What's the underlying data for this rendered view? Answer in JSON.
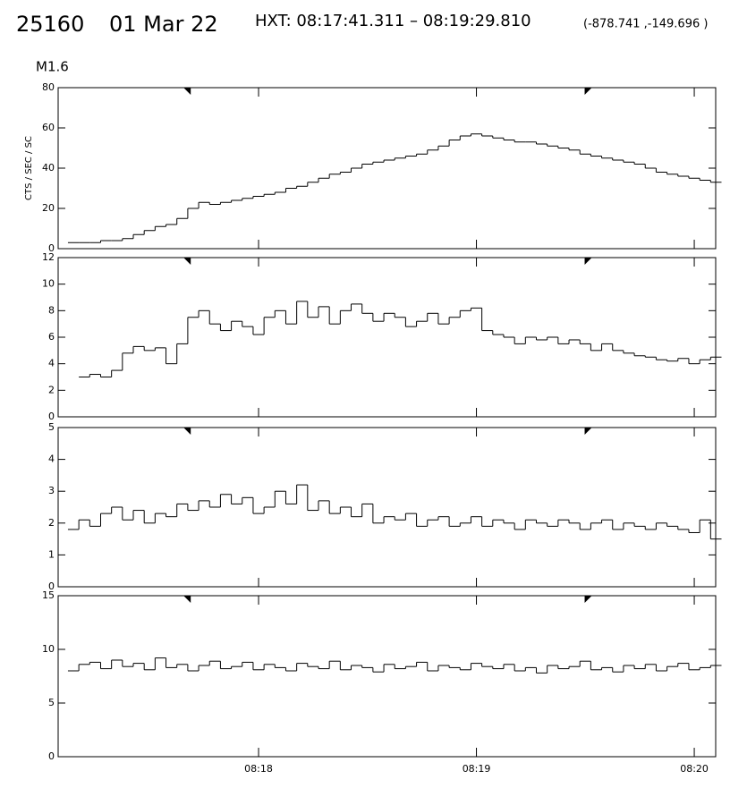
{
  "header": {
    "flare": "25160",
    "date": "01 Mar 22",
    "hxt": "HXT: 08:17:41.311 – 08:19:29.810",
    "coords": "(-878.741 ,-149.696 )",
    "class": "M1.6"
  },
  "hxt_interval": [
    41.311,
    149.81
  ],
  "chart_data": [
    {
      "type": "line",
      "step": true,
      "ylabel": "CTS / SEC / SC",
      "x": [
        9,
        12,
        15,
        18,
        21,
        24,
        27,
        30,
        33,
        36,
        39,
        42,
        45,
        48,
        51,
        54,
        57,
        60,
        63,
        66,
        69,
        72,
        75,
        78,
        81,
        84,
        87,
        90,
        93,
        96,
        99,
        102,
        105,
        108,
        111,
        114,
        117,
        120,
        123,
        126,
        129,
        132,
        135,
        138,
        141,
        144,
        147,
        150,
        153,
        156,
        159,
        162,
        165,
        168,
        171,
        174,
        177,
        180,
        183,
        186
      ],
      "values": [
        3,
        3,
        3,
        4,
        4,
        5,
        7,
        9,
        11,
        12,
        15,
        20,
        23,
        22,
        23,
        24,
        25,
        26,
        27,
        28,
        30,
        31,
        33,
        35,
        37,
        38,
        40,
        42,
        43,
        44,
        45,
        46,
        47,
        49,
        51,
        54,
        56,
        57,
        56,
        55,
        54,
        53,
        53,
        52,
        51,
        50,
        49,
        47,
        46,
        45,
        44,
        43,
        42,
        40,
        38,
        37,
        36,
        35,
        34,
        33
      ],
      "color": "#000000",
      "xlim": [
        4.8,
        185.9
      ],
      "xticks": [
        {
          "value": 60,
          "label": "08:18"
        },
        {
          "value": 120,
          "label": "08:19"
        },
        {
          "value": 180,
          "label": "08:20"
        }
      ],
      "ylim": [
        0,
        80
      ],
      "yticks": [
        0,
        20,
        40,
        60,
        80
      ]
    },
    {
      "type": "line",
      "step": true,
      "x": [
        9,
        12,
        15,
        18,
        21,
        24,
        27,
        30,
        33,
        36,
        39,
        42,
        45,
        48,
        51,
        54,
        57,
        60,
        63,
        66,
        69,
        72,
        75,
        78,
        81,
        84,
        87,
        90,
        93,
        96,
        99,
        102,
        105,
        108,
        111,
        114,
        117,
        120,
        123,
        126,
        129,
        132,
        135,
        138,
        141,
        144,
        147,
        150,
        153,
        156,
        159,
        162,
        165,
        168,
        171,
        174,
        177,
        180,
        183,
        186
      ],
      "values": [
        null,
        3,
        3.2,
        3,
        3.5,
        4.8,
        5.3,
        5,
        5.2,
        4,
        5.5,
        7.5,
        8,
        7,
        6.5,
        7.2,
        6.8,
        6.2,
        7.5,
        8,
        7,
        8.7,
        7.5,
        8.3,
        7,
        8,
        8.5,
        7.8,
        7.2,
        7.8,
        7.5,
        6.8,
        7.2,
        7.8,
        7,
        7.5,
        8,
        8.2,
        6.5,
        6.2,
        6,
        5.5,
        6,
        5.8,
        6,
        5.5,
        5.8,
        5.5,
        5,
        5.5,
        5,
        4.8,
        4.6,
        4.5,
        4.3,
        4.2,
        4.4,
        4,
        4.3,
        4.5
      ],
      "color": "#000000",
      "xlim": [
        4.8,
        185.9
      ],
      "xticks": [
        {
          "value": 60,
          "label": "08:18"
        },
        {
          "value": 120,
          "label": "08:19"
        },
        {
          "value": 180,
          "label": "08:20"
        }
      ],
      "ylim": [
        0,
        12
      ],
      "yticks": [
        0,
        2,
        4,
        6,
        8,
        10,
        12
      ]
    },
    {
      "type": "line",
      "step": true,
      "x": [
        9,
        12,
        15,
        18,
        21,
        24,
        27,
        30,
        33,
        36,
        39,
        42,
        45,
        48,
        51,
        54,
        57,
        60,
        63,
        66,
        69,
        72,
        75,
        78,
        81,
        84,
        87,
        90,
        93,
        96,
        99,
        102,
        105,
        108,
        111,
        114,
        117,
        120,
        123,
        126,
        129,
        132,
        135,
        138,
        141,
        144,
        147,
        150,
        153,
        156,
        159,
        162,
        165,
        168,
        171,
        174,
        177,
        180,
        183,
        186
      ],
      "values": [
        1.8,
        2.1,
        1.9,
        2.3,
        2.5,
        2.1,
        2.4,
        2.0,
        2.3,
        2.2,
        2.6,
        2.4,
        2.7,
        2.5,
        2.9,
        2.6,
        2.8,
        2.3,
        2.5,
        3.0,
        2.6,
        3.2,
        2.4,
        2.7,
        2.3,
        2.5,
        2.2,
        2.6,
        2.0,
        2.2,
        2.1,
        2.3,
        1.9,
        2.1,
        2.2,
        1.9,
        2.0,
        2.2,
        1.9,
        2.1,
        2.0,
        1.8,
        2.1,
        2.0,
        1.9,
        2.1,
        2.0,
        1.8,
        2.0,
        2.1,
        1.8,
        2.0,
        1.9,
        1.8,
        2.0,
        1.9,
        1.8,
        1.7,
        2.1,
        1.5
      ],
      "color": "#000000",
      "xlim": [
        4.8,
        185.9
      ],
      "xticks": [
        {
          "value": 60,
          "label": "08:18"
        },
        {
          "value": 120,
          "label": "08:19"
        },
        {
          "value": 180,
          "label": "08:20"
        }
      ],
      "ylim": [
        0,
        5
      ],
      "yticks": [
        0,
        1,
        2,
        3,
        4,
        5
      ]
    },
    {
      "type": "line",
      "step": true,
      "x": [
        9,
        12,
        15,
        18,
        21,
        24,
        27,
        30,
        33,
        36,
        39,
        42,
        45,
        48,
        51,
        54,
        57,
        60,
        63,
        66,
        69,
        72,
        75,
        78,
        81,
        84,
        87,
        90,
        93,
        96,
        99,
        102,
        105,
        108,
        111,
        114,
        117,
        120,
        123,
        126,
        129,
        132,
        135,
        138,
        141,
        144,
        147,
        150,
        153,
        156,
        159,
        162,
        165,
        168,
        171,
        174,
        177,
        180,
        183,
        186
      ],
      "values": [
        8.0,
        8.6,
        8.8,
        8.2,
        9.0,
        8.4,
        8.7,
        8.1,
        9.2,
        8.3,
        8.6,
        8.0,
        8.5,
        8.9,
        8.2,
        8.4,
        8.8,
        8.1,
        8.6,
        8.3,
        8.0,
        8.7,
        8.4,
        8.2,
        8.9,
        8.1,
        8.5,
        8.3,
        7.9,
        8.6,
        8.2,
        8.4,
        8.8,
        8.0,
        8.5,
        8.3,
        8.1,
        8.7,
        8.4,
        8.2,
        8.6,
        8.0,
        8.3,
        7.8,
        8.5,
        8.2,
        8.4,
        8.9,
        8.1,
        8.3,
        7.9,
        8.5,
        8.2,
        8.6,
        8.0,
        8.4,
        8.7,
        8.1,
        8.3,
        8.5
      ],
      "color": "#000000",
      "xlim": [
        4.8,
        185.9
      ],
      "xticks": [
        {
          "value": 60,
          "label": "08:18"
        },
        {
          "value": 120,
          "label": "08:19"
        },
        {
          "value": 180,
          "label": "08:20"
        }
      ],
      "ylim": [
        0,
        15
      ],
      "yticks": [
        0,
        5,
        10,
        15
      ],
      "show_xlabels": true
    }
  ]
}
